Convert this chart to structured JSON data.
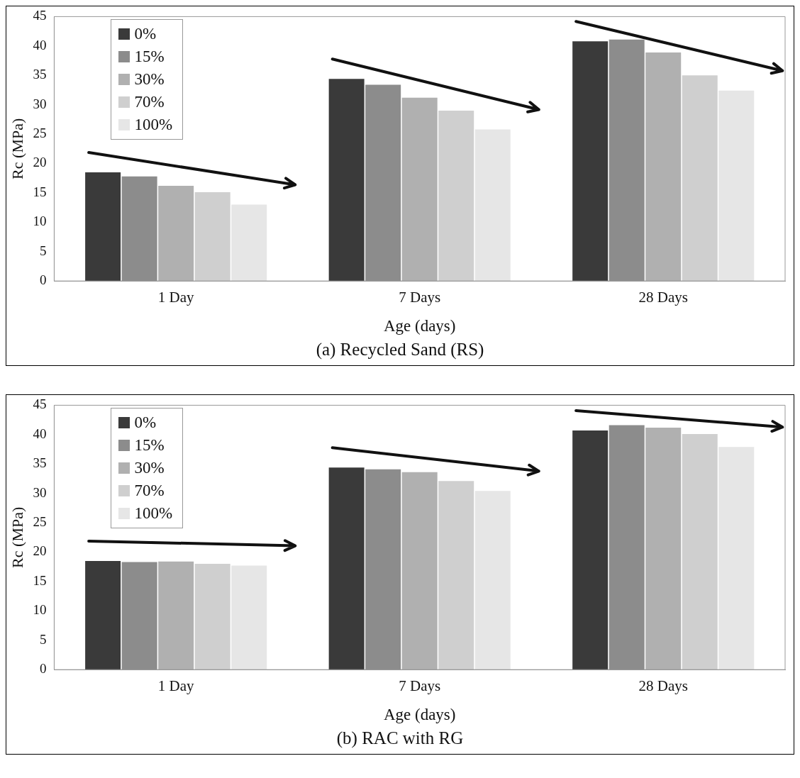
{
  "chart_data": [
    {
      "type": "bar",
      "ylabel": "Rc (MPa)",
      "xlabel": "Age (days)",
      "annotations": [
        "(a) Recycled Sand (RS)"
      ],
      "categories": [
        "1 Day",
        "7 Days",
        "28 Days"
      ],
      "series": [
        {
          "name": "0%",
          "color": "#3a3a3a",
          "values": [
            18.5,
            34.4,
            40.8
          ]
        },
        {
          "name": "15%",
          "color": "#8c8c8c",
          "values": [
            17.8,
            33.4,
            41.1
          ]
        },
        {
          "name": "30%",
          "color": "#b0b0b0",
          "values": [
            16.2,
            31.2,
            38.9
          ]
        },
        {
          "name": "70%",
          "color": "#cfcfcf",
          "values": [
            15.1,
            29.0,
            35.0
          ]
        },
        {
          "name": "100%",
          "color": "#e6e6e6",
          "values": [
            13.0,
            25.8,
            32.4
          ]
        }
      ],
      "ylim": [
        0,
        45
      ],
      "yticks": [
        0,
        5,
        10,
        15,
        20,
        25,
        30,
        35,
        40,
        45
      ],
      "grid": false,
      "legend": "top left"
    },
    {
      "type": "bar",
      "ylabel": "Rc (MPa)",
      "xlabel": "Age (days)",
      "annotations": [
        "(b) RAC with RG"
      ],
      "categories": [
        "1 Day",
        "7 Days",
        "28 Days"
      ],
      "series": [
        {
          "name": "0%",
          "color": "#3a3a3a",
          "values": [
            18.5,
            34.4,
            40.7
          ]
        },
        {
          "name": "15%",
          "color": "#8c8c8c",
          "values": [
            18.3,
            34.1,
            41.6
          ]
        },
        {
          "name": "30%",
          "color": "#b0b0b0",
          "values": [
            18.4,
            33.6,
            41.2
          ]
        },
        {
          "name": "70%",
          "color": "#cfcfcf",
          "values": [
            18.0,
            32.1,
            40.1
          ]
        },
        {
          "name": "100%",
          "color": "#e6e6e6",
          "values": [
            17.7,
            30.4,
            37.9
          ]
        }
      ],
      "ylim": [
        0,
        45
      ],
      "yticks": [
        0,
        5,
        10,
        15,
        20,
        25,
        30,
        35,
        40,
        45
      ],
      "grid": false,
      "legend": "top left"
    }
  ]
}
